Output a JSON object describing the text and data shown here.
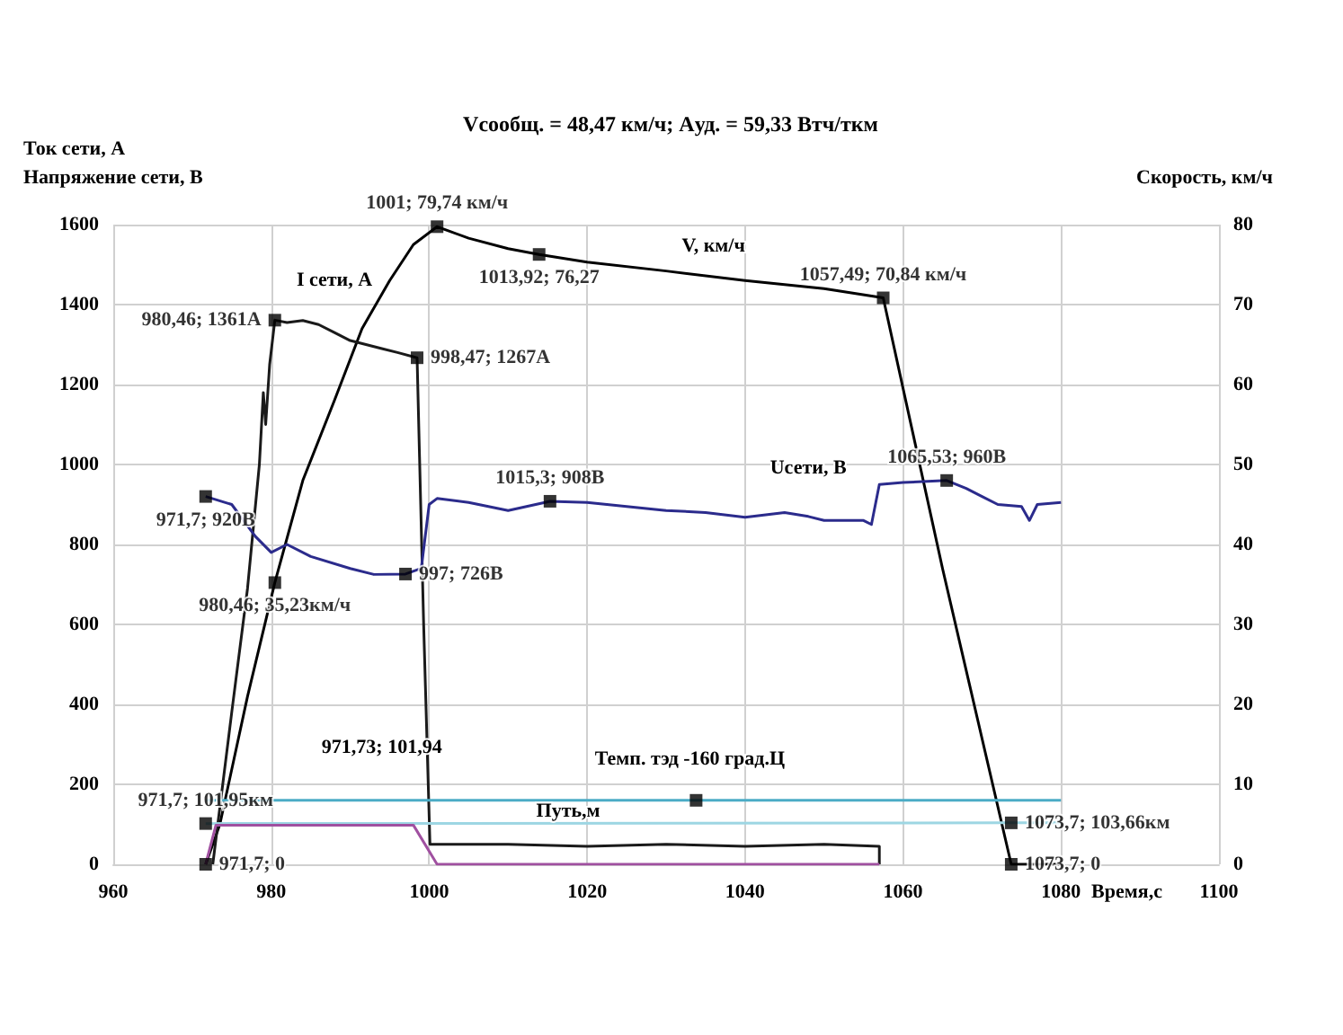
{
  "chart_data": {
    "type": "line",
    "title": "Vсообщ. = 48,47 км/ч; Aуд. = 59,33 Втч/ткм",
    "xlabel": "Время,с",
    "ylabel": "Ток сети, А\nНапряжение сети, В",
    "y2label": "Скорость, км/ч",
    "xlim": [
      960,
      1100
    ],
    "xticks": [
      960,
      980,
      1000,
      1020,
      1040,
      1060,
      1080,
      1100
    ],
    "ylim": [
      0,
      1600
    ],
    "yticks": [
      0,
      200,
      400,
      600,
      800,
      1000,
      1200,
      1400,
      1600
    ],
    "y2lim": [
      0,
      80
    ],
    "y2ticks": [
      0,
      10,
      20,
      30,
      40,
      50,
      60,
      70,
      80
    ],
    "grid": true,
    "marker": "square",
    "line_style": "solid",
    "series": [
      {
        "axis": "y2",
        "marker": "none",
        "color": "#000000",
        "x": [
          971.7,
          973.5,
          977,
          980.46,
          984,
          988,
          991.5,
          995,
          998,
          1001,
          1005,
          1010,
          1013.92,
          1020,
          1030,
          1040,
          1050,
          1057.49,
          1065,
          1073.7,
          1080
        ],
        "values": [
          0,
          5,
          21,
          35.23,
          48,
          58,
          67,
          73,
          77.5,
          79.74,
          78.3,
          77,
          76.27,
          75.3,
          74.2,
          73,
          72,
          70.84,
          37,
          0,
          0
        ]
      },
      {
        "marker": "none",
        "color": "#1a1a1a",
        "x": [
          972.6,
          975,
          977,
          978.5,
          979,
          979.3,
          979.8,
          980.46,
          982,
          984,
          986,
          988,
          990,
          992,
          994,
          996,
          998.47,
          999.3,
          1000.1,
          1010,
          1020,
          1030,
          1040,
          1050,
          1057,
          1057
        ],
        "values": [
          0,
          380,
          690,
          1000,
          1180,
          1100,
          1250,
          1361,
          1355,
          1360,
          1350,
          1330,
          1310,
          1300,
          1290,
          1280,
          1267,
          600,
          50,
          50,
          45,
          50,
          45,
          50,
          45,
          0
        ]
      },
      {
        "marker": "none",
        "color": "#2b2b8c",
        "x": [
          971.7,
          975,
          978,
          980,
          982,
          985,
          990,
          993,
          997,
          999,
          1000,
          1001,
          1005,
          1010,
          1015.3,
          1020,
          1025,
          1030,
          1035,
          1040,
          1045,
          1048,
          1050,
          1055,
          1056,
          1057,
          1060,
          1065.53,
          1068,
          1070,
          1072,
          1075,
          1076,
          1077,
          1080
        ],
        "values": [
          920,
          900,
          820,
          780,
          800,
          770,
          740,
          725,
          726,
          740,
          900,
          915,
          905,
          885,
          908,
          905,
          895,
          885,
          880,
          868,
          880,
          870,
          860,
          860,
          850,
          950,
          955,
          960,
          940,
          920,
          900,
          895,
          860,
          900,
          905
        ]
      },
      {
        "marker": "none",
        "color": "#4bacc6",
        "x": [
          971.7,
          1080
        ],
        "values": [
          160,
          160
        ]
      },
      {
        "marker": "none",
        "color": "#9dd6e3",
        "x": [
          971.7,
          1073.7,
          1080
        ],
        "values": [
          101.95,
          103.66,
          104
        ]
      },
      {
        "marker": "none",
        "color": "#a050a0",
        "x": [
          971.7,
          973,
          998,
          1001,
          1057
        ],
        "values": [
          0,
          98,
          98,
          0,
          0
        ]
      },
      {
        "type": "scatter",
        "axis": "y2",
        "color": "#000000",
        "x": [
          971.7,
          980.46,
          1001,
          1013.92,
          1057.49,
          1073.7
        ],
        "values": [
          0,
          35.23,
          79.74,
          76.27,
          70.84,
          0
        ],
        "value_labels": [
          "971,7; 0",
          "980,46; 35,23км/ч",
          "1001; 79,74 км/ч",
          "1013,92; 76,27",
          "1057,49; 70,84 км/ч",
          "1073,7; 0"
        ]
      },
      {
        "type": "scatter",
        "color": "#000000",
        "x": [
          980.46,
          998.47,
          971.7,
          997,
          1015.3,
          1065.53,
          1033.8,
          971.7,
          1073.7
        ],
        "values": [
          1361,
          1267,
          920,
          726,
          908,
          960,
          160,
          101.95,
          103.66
        ],
        "value_labels": [
          "980,46; 1361А",
          "998,47; 1267А",
          "971,7; 920В",
          "997; 726В",
          "1015,3; 908В",
          "1065,53; 960В",
          null,
          "971,7; 101,95км",
          "1073,7; 103,66км"
        ]
      }
    ],
    "annotations": [
      "I сети, А",
      "V, км/ч",
      "Uсети, В",
      "Путь,м",
      "Темп. тэд -160 град.Ц",
      "971,73; 101,94"
    ]
  }
}
